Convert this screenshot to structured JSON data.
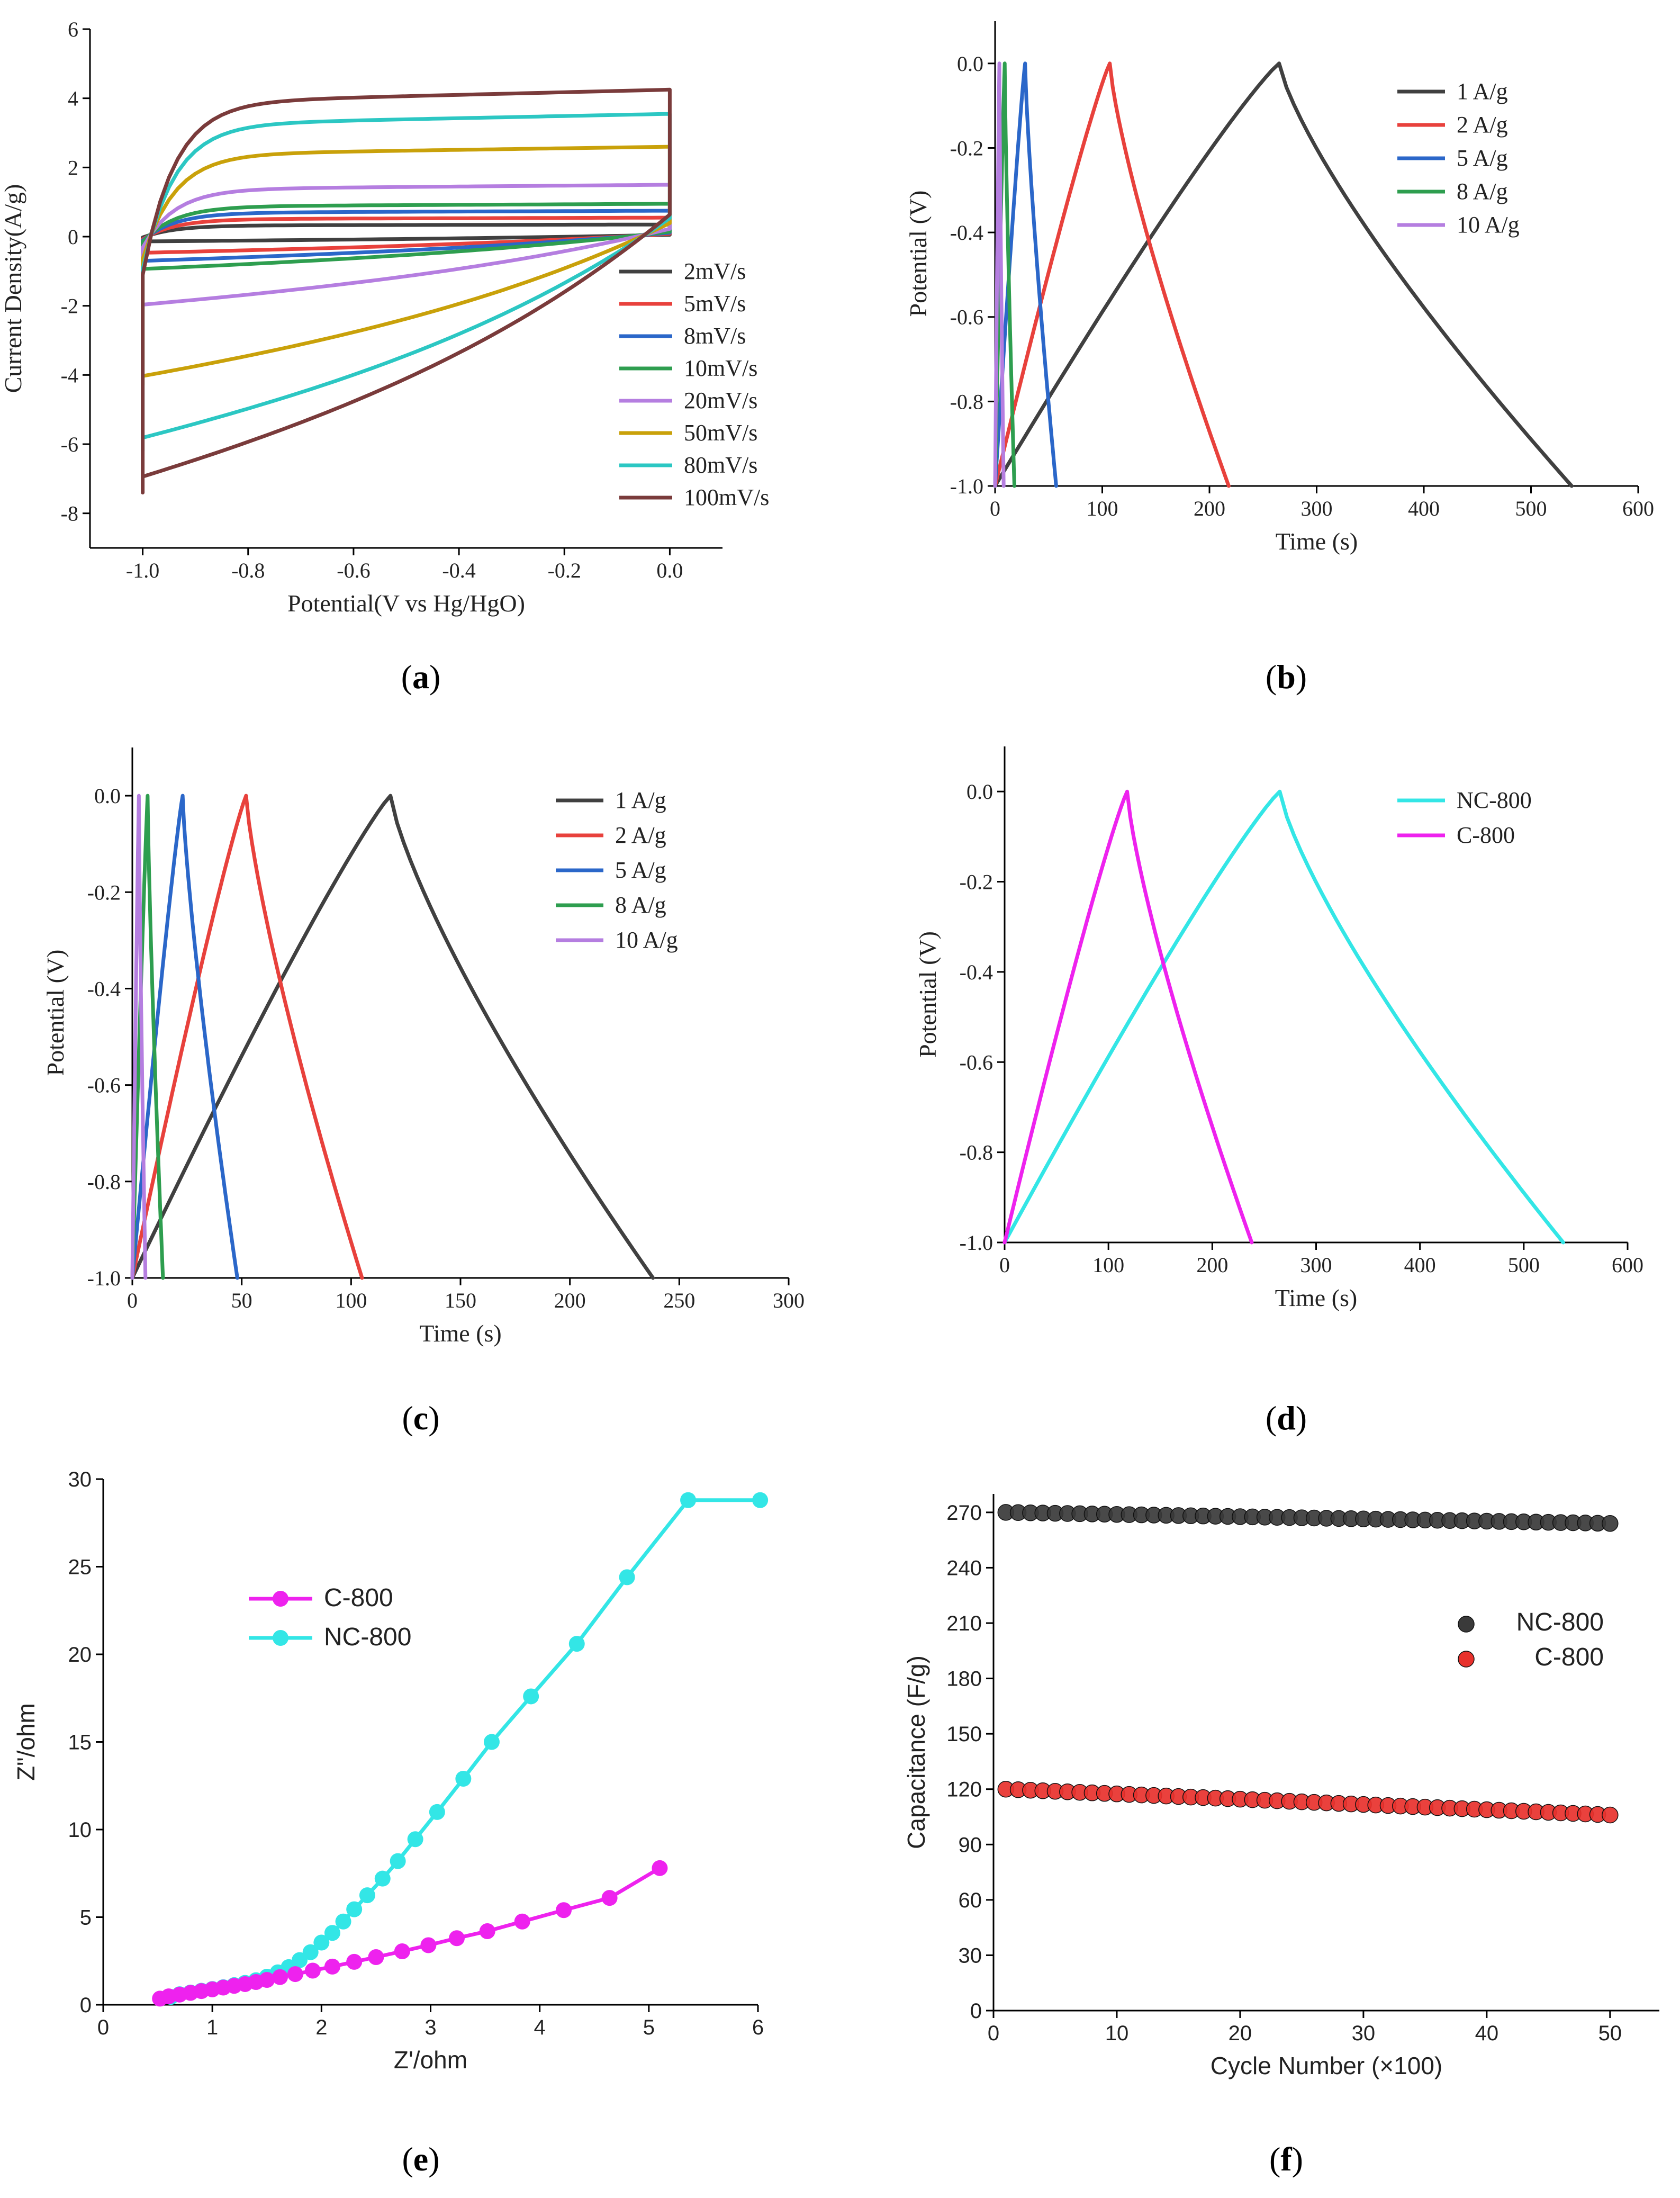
{
  "chart_data": [
    {
      "id": "a",
      "panel_label": "a",
      "type": "line",
      "title": "",
      "xlabel": "Potential(V vs Hg/HgO)",
      "ylabel": "Current Density(A/g)",
      "xlim": [
        -1.1,
        0.1
      ],
      "ylim": [
        -9,
        6
      ],
      "xticks": [
        -1.0,
        -0.8,
        -0.6,
        -0.4,
        -0.2,
        0.0
      ],
      "xtick_labels": [
        "-1.0",
        "-0.8",
        "-0.6",
        "-0.4",
        "-0.2",
        "0.0"
      ],
      "yticks": [
        -8,
        -6,
        -4,
        -2,
        0,
        2,
        4,
        6
      ],
      "ytick_labels": [
        "-8",
        "-6",
        "-4",
        "-2",
        "0",
        "2",
        "4",
        "6"
      ],
      "legend_position": "bottom-right",
      "series": [
        {
          "name": "2mV/s",
          "color": "#404040",
          "kind": "cv",
          "upper": 0.35,
          "lower": -0.15
        },
        {
          "name": "5mV/s",
          "color": "#e8413c",
          "kind": "cv",
          "upper": 0.55,
          "lower": -0.5
        },
        {
          "name": "8mV/s",
          "color": "#2b67c9",
          "kind": "cv",
          "upper": 0.75,
          "lower": -0.75
        },
        {
          "name": "10mV/s",
          "color": "#2e9e4f",
          "kind": "cv",
          "upper": 0.95,
          "lower": -1.0
        },
        {
          "name": "20mV/s",
          "color": "#b57ee0",
          "kind": "cv",
          "upper": 1.5,
          "lower": -2.1
        },
        {
          "name": "50mV/s",
          "color": "#c9a10a",
          "kind": "cv",
          "upper": 2.6,
          "lower": -4.3
        },
        {
          "name": "80mV/s",
          "color": "#2cc7c3",
          "kind": "cv",
          "upper": 3.55,
          "lower": -6.2
        },
        {
          "name": "100mV/s",
          "color": "#7a3b3b",
          "kind": "cv",
          "upper": 4.25,
          "lower": -7.4
        }
      ]
    },
    {
      "id": "b",
      "panel_label": "b",
      "type": "line",
      "title": "",
      "xlabel": "Time (s)",
      "ylabel": "Potential (V)",
      "xlim": [
        0,
        600
      ],
      "ylim": [
        -1.0,
        0.1
      ],
      "xticks": [
        0,
        100,
        200,
        300,
        400,
        500,
        600
      ],
      "xtick_labels": [
        "0",
        "100",
        "200",
        "300",
        "400",
        "500",
        "600"
      ],
      "yticks": [
        -1.0,
        -0.8,
        -0.6,
        -0.4,
        -0.2,
        0.0
      ],
      "ytick_labels": [
        "-1.0",
        "-0.8",
        "-0.6",
        "-0.4",
        "-0.2",
        "0.0"
      ],
      "legend_position": "top-right",
      "series": [
        {
          "name": "1   A/g",
          "color": "#404040",
          "kind": "gcd",
          "t_peak": 265,
          "t_end": 538
        },
        {
          "name": "2   A/g",
          "color": "#e8413c",
          "kind": "gcd",
          "t_peak": 107,
          "t_end": 218
        },
        {
          "name": "5   A/g",
          "color": "#2b67c9",
          "kind": "gcd",
          "t_peak": 28,
          "t_end": 57
        },
        {
          "name": "8   A/g",
          "color": "#2e9e4f",
          "kind": "gcd",
          "t_peak": 9,
          "t_end": 18
        },
        {
          "name": "10 A/g",
          "color": "#b57ee0",
          "kind": "gcd",
          "t_peak": 4,
          "t_end": 8
        }
      ]
    },
    {
      "id": "c",
      "panel_label": "c",
      "type": "line",
      "title": "",
      "xlabel": "Time (s)",
      "ylabel": "Potential (V)",
      "xlim": [
        0,
        300
      ],
      "ylim": [
        -1.0,
        0.1
      ],
      "xticks": [
        0,
        50,
        100,
        150,
        200,
        250,
        300
      ],
      "xtick_labels": [
        "0",
        "50",
        "100",
        "150",
        "200",
        "250",
        "300"
      ],
      "yticks": [
        -1.0,
        -0.8,
        -0.6,
        -0.4,
        -0.2,
        0.0
      ],
      "ytick_labels": [
        "-1.0",
        "-0.8",
        "-0.6",
        "-0.4",
        "-0.2",
        "0.0"
      ],
      "legend_position": "top-right",
      "series": [
        {
          "name": "1   A/g",
          "color": "#404040",
          "kind": "gcd",
          "t_peak": 118,
          "t_end": 238
        },
        {
          "name": "2   A/g",
          "color": "#e8413c",
          "kind": "gcd",
          "t_peak": 52,
          "t_end": 105
        },
        {
          "name": "5   A/g",
          "color": "#2b67c9",
          "kind": "gcd",
          "t_peak": 23,
          "t_end": 48
        },
        {
          "name": "8   A/g",
          "color": "#2e9e4f",
          "kind": "gcd",
          "t_peak": 7,
          "t_end": 14
        },
        {
          "name": "10 A/g",
          "color": "#b57ee0",
          "kind": "gcd",
          "t_peak": 3,
          "t_end": 6
        }
      ]
    },
    {
      "id": "d",
      "panel_label": "d",
      "type": "line",
      "title": "",
      "xlabel": "Time (s)",
      "ylabel": "Potential (V)",
      "xlim": [
        0,
        600
      ],
      "ylim": [
        -1.0,
        0.1
      ],
      "xticks": [
        0,
        100,
        200,
        300,
        400,
        500,
        600
      ],
      "xtick_labels": [
        "0",
        "100",
        "200",
        "300",
        "400",
        "500",
        "600"
      ],
      "yticks": [
        -1.0,
        -0.8,
        -0.6,
        -0.4,
        -0.2,
        0.0
      ],
      "ytick_labels": [
        "-1.0",
        "-0.8",
        "-0.6",
        "-0.4",
        "-0.2",
        "0.0"
      ],
      "legend_position": "top-right",
      "series": [
        {
          "name": "NC-800",
          "color": "#33e6e6",
          "kind": "gcd",
          "t_peak": 265,
          "t_end": 538
        },
        {
          "name": "C-800",
          "color": "#ee22ee",
          "kind": "gcd",
          "t_peak": 118,
          "t_end": 238
        }
      ]
    },
    {
      "id": "e",
      "panel_label": "e",
      "type": "scatter",
      "title": "",
      "xlabel": "Z'/ohm",
      "ylabel": "Z\"/ohm",
      "xlim": [
        0,
        6
      ],
      "ylim": [
        0,
        30
      ],
      "xticks": [
        0,
        1,
        2,
        3,
        4,
        5,
        6
      ],
      "xtick_labels": [
        "0",
        "1",
        "2",
        "3",
        "4",
        "5",
        "6"
      ],
      "yticks": [
        0,
        5,
        10,
        15,
        20,
        25,
        30
      ],
      "ytick_labels": [
        "0",
        "5",
        "10",
        "15",
        "20",
        "25",
        "30"
      ],
      "legend_position": "upper-left",
      "series": [
        {
          "name": "NC-800",
          "color": "#33e6e6",
          "x": [
            0.62,
            0.7,
            0.8,
            0.9,
            1.0,
            1.1,
            1.2,
            1.3,
            1.4,
            1.5,
            1.6,
            1.7,
            1.8,
            1.9,
            2.0,
            2.1,
            2.2,
            2.3,
            2.42,
            2.56,
            2.7,
            2.86,
            3.06,
            3.3,
            3.56,
            3.92,
            4.34,
            4.8,
            5.36,
            6.02
          ],
          "y": [
            0.45,
            0.6,
            0.7,
            0.8,
            0.9,
            1.0,
            1.12,
            1.25,
            1.4,
            1.6,
            1.85,
            2.15,
            2.55,
            3.0,
            3.55,
            4.1,
            4.75,
            5.45,
            6.25,
            7.2,
            8.2,
            9.45,
            11.0,
            12.9,
            15.0,
            17.6,
            20.6,
            24.4,
            28.8,
            28.8
          ]
        },
        {
          "name": "C-800",
          "color": "#ee22ee",
          "x": [
            0.52,
            0.6,
            0.7,
            0.8,
            0.9,
            1.0,
            1.1,
            1.2,
            1.3,
            1.4,
            1.5,
            1.62,
            1.76,
            1.92,
            2.1,
            2.3,
            2.5,
            2.74,
            2.98,
            3.24,
            3.52,
            3.84,
            4.22,
            4.64,
            5.1
          ],
          "y": [
            0.35,
            0.48,
            0.58,
            0.68,
            0.78,
            0.88,
            0.98,
            1.08,
            1.18,
            1.3,
            1.42,
            1.58,
            1.75,
            1.95,
            2.18,
            2.45,
            2.72,
            3.05,
            3.4,
            3.8,
            4.2,
            4.75,
            5.4,
            6.1,
            7.8
          ]
        }
      ]
    },
    {
      "id": "f",
      "panel_label": "f",
      "type": "scatter",
      "title": "",
      "xlabel": "Cycle Number (×100)",
      "ylabel": "Capacitance (F/g)",
      "xlim": [
        0,
        54
      ],
      "ylim": [
        0,
        280
      ],
      "xticks": [
        0,
        10,
        20,
        30,
        40,
        50
      ],
      "xtick_labels": [
        "0",
        "10",
        "20",
        "30",
        "40",
        "50"
      ],
      "yticks": [
        0,
        30,
        60,
        90,
        120,
        150,
        180,
        210,
        240,
        270
      ],
      "ytick_labels": [
        "0",
        "30",
        "60",
        "90",
        "120",
        "150",
        "180",
        "210",
        "240",
        "270"
      ],
      "legend_position": "right-middle",
      "series": [
        {
          "name": "NC-800",
          "color": "#3a3a3a",
          "x_start": 1,
          "x_end": 50,
          "y_start": 270,
          "y_end": 264
        },
        {
          "name": "C-800",
          "color": "#e8312c",
          "x_start": 1,
          "x_end": 50,
          "y_start": 120,
          "y_end": 106
        }
      ]
    }
  ]
}
